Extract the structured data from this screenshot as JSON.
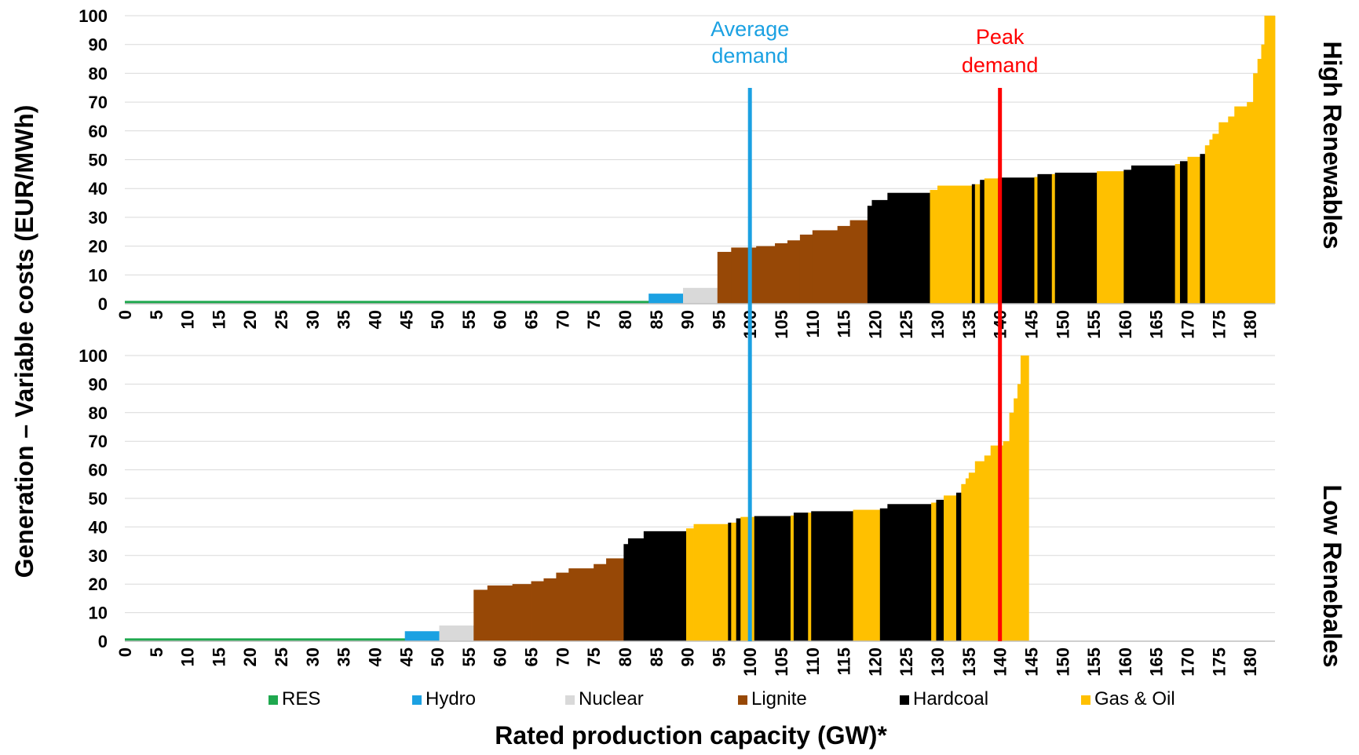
{
  "chart_data": {
    "type": "bar",
    "ylabel": "Generation – Variable costs  (EUR/MWh)",
    "xlabel": "Rated production capacity  (GW)*",
    "xlim": [
      0,
      184
    ],
    "ylim": [
      0,
      100
    ],
    "x_ticks": [
      0,
      5,
      10,
      15,
      20,
      25,
      30,
      35,
      40,
      45,
      50,
      55,
      60,
      65,
      70,
      75,
      80,
      85,
      90,
      95,
      100,
      105,
      110,
      115,
      120,
      125,
      130,
      135,
      140,
      145,
      150,
      155,
      160,
      165,
      170,
      175,
      180
    ],
    "y_ticks": [
      0,
      10,
      20,
      30,
      40,
      50,
      60,
      70,
      80,
      90,
      100
    ],
    "grid": true,
    "legend_position": "bottom",
    "legend": [
      {
        "key": "RES",
        "label": "RES",
        "color": "#1fa84f"
      },
      {
        "key": "Hydro",
        "label": "Hydro",
        "color": "#1ba1e2"
      },
      {
        "key": "Nuclear",
        "label": "Nuclear",
        "color": "#d9d9d9"
      },
      {
        "key": "Lignite",
        "label": "Lignite",
        "color": "#974806"
      },
      {
        "key": "Hardcoal",
        "label": "Hardcoal",
        "color": "#000000"
      },
      {
        "key": "GasOil",
        "label": "Gas & Oil",
        "color": "#ffc000"
      }
    ],
    "vlines": [
      {
        "label": [
          "Average",
          "demand"
        ],
        "x": 100,
        "color": "#1ba1e2"
      },
      {
        "label": [
          "Peak",
          "demand"
        ],
        "x": 140,
        "color": "#ff0000"
      }
    ],
    "panels": [
      {
        "title": "High Renewables",
        "segments": [
          {
            "x0": 0,
            "x1": 83.8,
            "y": 1,
            "type": "RES"
          },
          {
            "x0": 83.8,
            "x1": 89.3,
            "y": 3.5,
            "type": "Hydro"
          },
          {
            "x0": 89.3,
            "x1": 94.8,
            "y": 5.5,
            "type": "Nuclear"
          },
          {
            "x0": 94.8,
            "x1": 97,
            "y": 18,
            "type": "Lignite"
          },
          {
            "x0": 97,
            "x1": 101,
            "y": 19.5,
            "type": "Lignite"
          },
          {
            "x0": 101,
            "x1": 104,
            "y": 20,
            "type": "Lignite"
          },
          {
            "x0": 104,
            "x1": 106,
            "y": 21,
            "type": "Lignite"
          },
          {
            "x0": 106,
            "x1": 108,
            "y": 22,
            "type": "Lignite"
          },
          {
            "x0": 108,
            "x1": 110,
            "y": 24,
            "type": "Lignite"
          },
          {
            "x0": 110,
            "x1": 114,
            "y": 25.5,
            "type": "Lignite"
          },
          {
            "x0": 114,
            "x1": 116,
            "y": 27,
            "type": "Lignite"
          },
          {
            "x0": 116,
            "x1": 118.8,
            "y": 29,
            "type": "Lignite"
          },
          {
            "x0": 118.8,
            "x1": 119.5,
            "y": 34,
            "type": "Hardcoal"
          },
          {
            "x0": 119.5,
            "x1": 122,
            "y": 36,
            "type": "Hardcoal"
          },
          {
            "x0": 122,
            "x1": 128.8,
            "y": 38.5,
            "type": "Hardcoal"
          },
          {
            "x0": 128.8,
            "x1": 130,
            "y": 39.5,
            "type": "GasOil"
          },
          {
            "x0": 130,
            "x1": 135.5,
            "y": 41,
            "type": "GasOil"
          },
          {
            "x0": 135.5,
            "x1": 136,
            "y": 41.5,
            "type": "Hardcoal"
          },
          {
            "x0": 136,
            "x1": 136.8,
            "y": 41.5,
            "type": "GasOil"
          },
          {
            "x0": 136.8,
            "x1": 137.5,
            "y": 43,
            "type": "Hardcoal"
          },
          {
            "x0": 137.5,
            "x1": 139.7,
            "y": 43.5,
            "type": "GasOil"
          },
          {
            "x0": 139.7,
            "x1": 145.5,
            "y": 43.8,
            "type": "Hardcoal"
          },
          {
            "x0": 145.5,
            "x1": 146,
            "y": 44,
            "type": "GasOil"
          },
          {
            "x0": 146,
            "x1": 148.3,
            "y": 45,
            "type": "Hardcoal"
          },
          {
            "x0": 148.3,
            "x1": 148.8,
            "y": 45,
            "type": "GasOil"
          },
          {
            "x0": 148.8,
            "x1": 155.5,
            "y": 45.5,
            "type": "Hardcoal"
          },
          {
            "x0": 155.5,
            "x1": 159.8,
            "y": 46,
            "type": "GasOil"
          },
          {
            "x0": 159.8,
            "x1": 161,
            "y": 46.5,
            "type": "Hardcoal"
          },
          {
            "x0": 161,
            "x1": 168,
            "y": 48,
            "type": "Hardcoal"
          },
          {
            "x0": 168,
            "x1": 168.8,
            "y": 48.5,
            "type": "GasOil"
          },
          {
            "x0": 168.8,
            "x1": 170,
            "y": 49.5,
            "type": "Hardcoal"
          },
          {
            "x0": 170,
            "x1": 172,
            "y": 51,
            "type": "GasOil"
          },
          {
            "x0": 172,
            "x1": 172.8,
            "y": 52,
            "type": "Hardcoal"
          },
          {
            "x0": 172.8,
            "x1": 173.5,
            "y": 55,
            "type": "GasOil"
          },
          {
            "x0": 173.5,
            "x1": 174,
            "y": 57,
            "type": "GasOil"
          },
          {
            "x0": 174,
            "x1": 175,
            "y": 59,
            "type": "GasOil"
          },
          {
            "x0": 175,
            "x1": 176.5,
            "y": 63,
            "type": "GasOil"
          },
          {
            "x0": 176.5,
            "x1": 177.5,
            "y": 65,
            "type": "GasOil"
          },
          {
            "x0": 177.5,
            "x1": 179.5,
            "y": 68.5,
            "type": "GasOil"
          },
          {
            "x0": 179.5,
            "x1": 180.5,
            "y": 70,
            "type": "GasOil"
          },
          {
            "x0": 180.5,
            "x1": 181.2,
            "y": 80,
            "type": "GasOil"
          },
          {
            "x0": 181.2,
            "x1": 181.8,
            "y": 85,
            "type": "GasOil"
          },
          {
            "x0": 181.8,
            "x1": 182.3,
            "y": 90,
            "type": "GasOil"
          },
          {
            "x0": 182.3,
            "x1": 184,
            "y": 100,
            "type": "GasOil"
          }
        ]
      },
      {
        "title": "Low Renebales",
        "segments": [
          {
            "x0": 0,
            "x1": 44.8,
            "y": 1,
            "type": "RES"
          },
          {
            "x0": 44.8,
            "x1": 50.3,
            "y": 3.5,
            "type": "Hydro"
          },
          {
            "x0": 50.3,
            "x1": 55.8,
            "y": 5.5,
            "type": "Nuclear"
          },
          {
            "x0": 55.8,
            "x1": 58,
            "y": 18,
            "type": "Lignite"
          },
          {
            "x0": 58,
            "x1": 62,
            "y": 19.5,
            "type": "Lignite"
          },
          {
            "x0": 62,
            "x1": 65,
            "y": 20,
            "type": "Lignite"
          },
          {
            "x0": 65,
            "x1": 67,
            "y": 21,
            "type": "Lignite"
          },
          {
            "x0": 67,
            "x1": 69,
            "y": 22,
            "type": "Lignite"
          },
          {
            "x0": 69,
            "x1": 71,
            "y": 24,
            "type": "Lignite"
          },
          {
            "x0": 71,
            "x1": 75,
            "y": 25.5,
            "type": "Lignite"
          },
          {
            "x0": 75,
            "x1": 77,
            "y": 27,
            "type": "Lignite"
          },
          {
            "x0": 77,
            "x1": 79.8,
            "y": 29,
            "type": "Lignite"
          },
          {
            "x0": 79.8,
            "x1": 80.5,
            "y": 34,
            "type": "Hardcoal"
          },
          {
            "x0": 80.5,
            "x1": 83,
            "y": 36,
            "type": "Hardcoal"
          },
          {
            "x0": 83,
            "x1": 89.8,
            "y": 38.5,
            "type": "Hardcoal"
          },
          {
            "x0": 89.8,
            "x1": 91,
            "y": 39.5,
            "type": "GasOil"
          },
          {
            "x0": 91,
            "x1": 96.5,
            "y": 41,
            "type": "GasOil"
          },
          {
            "x0": 96.5,
            "x1": 97,
            "y": 41.5,
            "type": "Hardcoal"
          },
          {
            "x0": 97,
            "x1": 97.8,
            "y": 41.5,
            "type": "GasOil"
          },
          {
            "x0": 97.8,
            "x1": 98.5,
            "y": 43,
            "type": "Hardcoal"
          },
          {
            "x0": 98.5,
            "x1": 100.7,
            "y": 43.5,
            "type": "GasOil"
          },
          {
            "x0": 100.7,
            "x1": 106.5,
            "y": 43.8,
            "type": "Hardcoal"
          },
          {
            "x0": 106.5,
            "x1": 107,
            "y": 44,
            "type": "GasOil"
          },
          {
            "x0": 107,
            "x1": 109.3,
            "y": 45,
            "type": "Hardcoal"
          },
          {
            "x0": 109.3,
            "x1": 109.8,
            "y": 45,
            "type": "GasOil"
          },
          {
            "x0": 109.8,
            "x1": 116.5,
            "y": 45.5,
            "type": "Hardcoal"
          },
          {
            "x0": 116.5,
            "x1": 120.8,
            "y": 46,
            "type": "GasOil"
          },
          {
            "x0": 120.8,
            "x1": 122,
            "y": 46.5,
            "type": "Hardcoal"
          },
          {
            "x0": 122,
            "x1": 129,
            "y": 48,
            "type": "Hardcoal"
          },
          {
            "x0": 129,
            "x1": 129.8,
            "y": 48.5,
            "type": "GasOil"
          },
          {
            "x0": 129.8,
            "x1": 131,
            "y": 49.5,
            "type": "Hardcoal"
          },
          {
            "x0": 131,
            "x1": 133,
            "y": 51,
            "type": "GasOil"
          },
          {
            "x0": 133,
            "x1": 133.8,
            "y": 52,
            "type": "Hardcoal"
          },
          {
            "x0": 133.8,
            "x1": 134.5,
            "y": 55,
            "type": "GasOil"
          },
          {
            "x0": 134.5,
            "x1": 135,
            "y": 57,
            "type": "GasOil"
          },
          {
            "x0": 135,
            "x1": 136,
            "y": 59,
            "type": "GasOil"
          },
          {
            "x0": 136,
            "x1": 137.5,
            "y": 63,
            "type": "GasOil"
          },
          {
            "x0": 137.5,
            "x1": 138.5,
            "y": 65,
            "type": "GasOil"
          },
          {
            "x0": 138.5,
            "x1": 140.5,
            "y": 68.5,
            "type": "GasOil"
          },
          {
            "x0": 140.5,
            "x1": 141.5,
            "y": 70,
            "type": "GasOil"
          },
          {
            "x0": 141.5,
            "x1": 142.2,
            "y": 80,
            "type": "GasOil"
          },
          {
            "x0": 142.2,
            "x1": 142.8,
            "y": 85,
            "type": "GasOil"
          },
          {
            "x0": 142.8,
            "x1": 143.3,
            "y": 90,
            "type": "GasOil"
          },
          {
            "x0": 143.3,
            "x1": 144.6,
            "y": 100,
            "type": "GasOil"
          }
        ]
      }
    ]
  }
}
